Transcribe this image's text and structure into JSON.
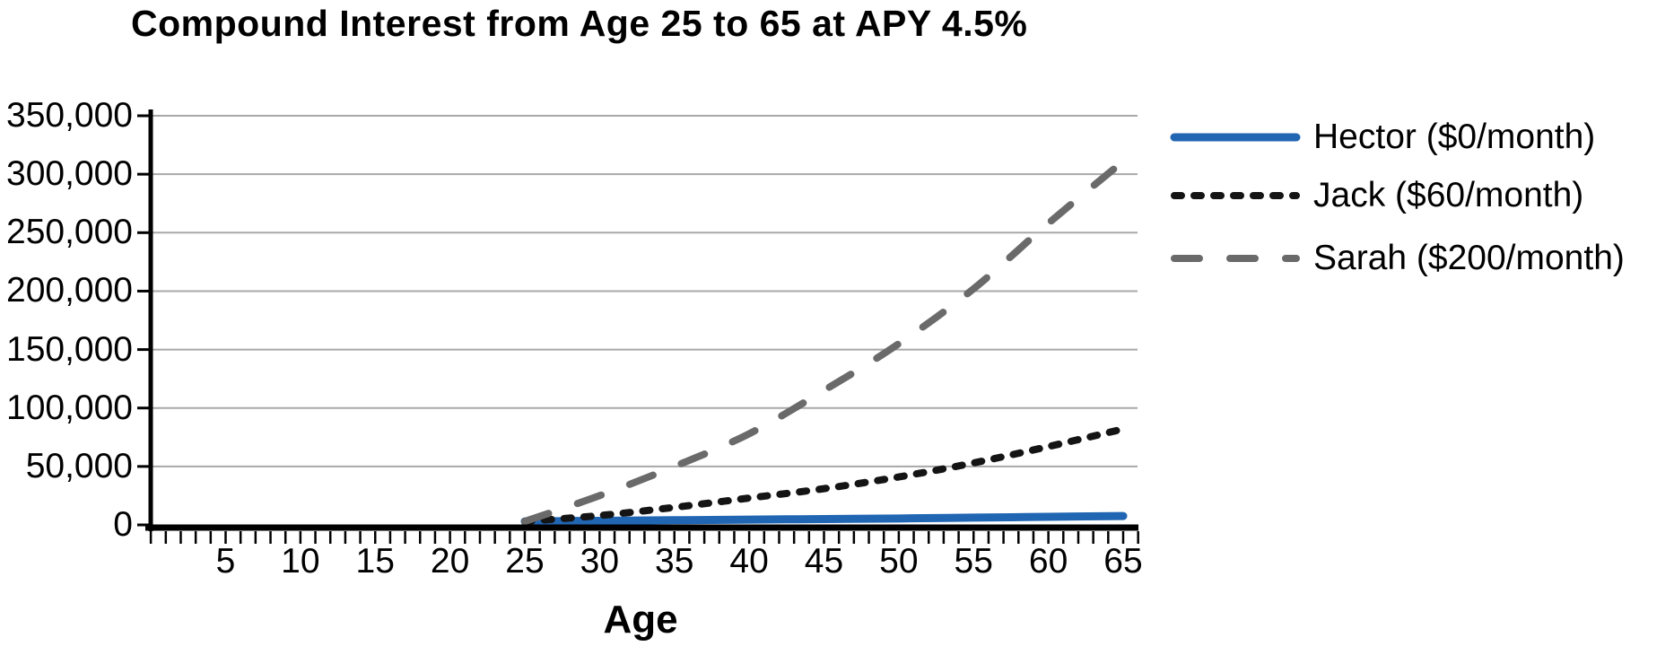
{
  "chart_data": {
    "type": "line",
    "title": "Compound Interest from Age 25 to 65 at APY 4.5%",
    "xlabel": "Age",
    "ylabel": "",
    "x": [
      25,
      30,
      35,
      40,
      45,
      50,
      55,
      60,
      65
    ],
    "x_tick_labels": [
      5,
      10,
      15,
      20,
      25,
      30,
      35,
      40,
      45,
      50,
      55,
      60,
      65
    ],
    "x_minor_tick_step": 1,
    "xlim": [
      0,
      66
    ],
    "y_tick_values": [
      0,
      50000,
      100000,
      150000,
      200000,
      250000,
      300000,
      350000
    ],
    "y_tick_labels": [
      "0",
      "50,000",
      "100,000",
      "150,000",
      "200,000",
      "250,000",
      "300,000",
      "350,000"
    ],
    "ylim": [
      0,
      350000
    ],
    "grid": "horizontal",
    "gridline_color": "#a8a8a8",
    "axis_color": "#000000",
    "legend_position": "right",
    "series": [
      {
        "name": "Hector",
        "label": "Hector ($0/month)",
        "color": "#2166b3",
        "line_style": "solid",
        "values": [
          3000,
          3500,
          4000,
          4500,
          5000,
          5500,
          6200,
          6900,
          7600
        ]
      },
      {
        "name": "Jack",
        "label": "Jack ($60/month)",
        "color": "#141414",
        "line_style": "dotted",
        "values": [
          3000,
          8000,
          15000,
          23000,
          31000,
          41000,
          53000,
          67000,
          82000
        ]
      },
      {
        "name": "Sarah",
        "label": "Sarah ($200/month)",
        "color": "#6a6a6a",
        "line_style": "dashed",
        "values": [
          3000,
          25000,
          50000,
          78000,
          115000,
          155000,
          202000,
          258000,
          311000
        ]
      }
    ]
  }
}
